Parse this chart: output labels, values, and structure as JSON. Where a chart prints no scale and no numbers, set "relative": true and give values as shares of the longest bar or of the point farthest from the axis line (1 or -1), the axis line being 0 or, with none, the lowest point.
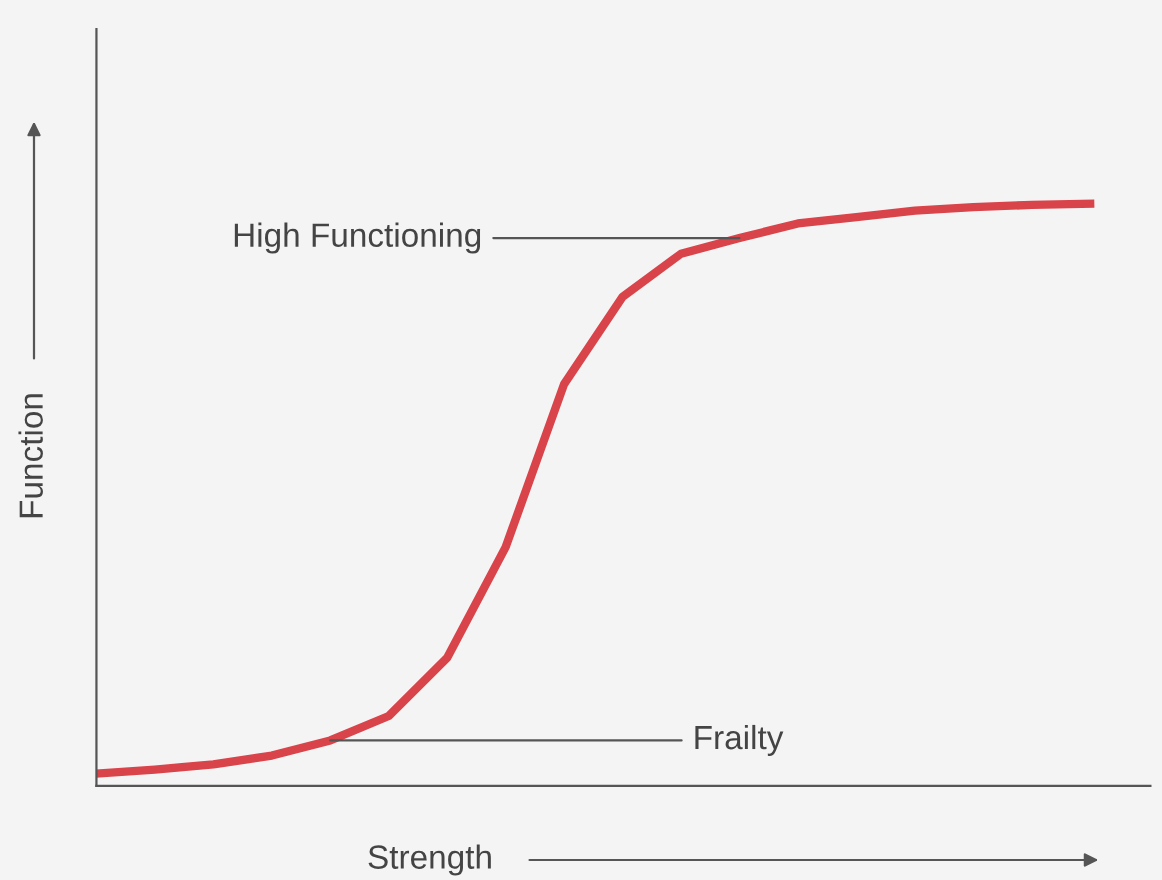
{
  "chart_data": {
    "type": "line",
    "relative": true,
    "xlabel": "Strength",
    "ylabel": "Function",
    "categories": [
      null,
      null,
      null,
      null,
      null,
      null,
      null,
      null,
      null,
      null,
      null,
      null,
      null,
      null,
      null,
      null,
      null,
      null
    ],
    "series": [
      {
        "color": "#d9434a",
        "values": [
          0.021,
          0.028,
          0.037,
          0.052,
          0.078,
          0.12,
          0.22,
          0.41,
          0.69,
          0.84,
          0.914,
          0.941,
          0.966,
          0.977,
          0.988,
          0.994,
          0.998,
          1
        ]
      }
    ],
    "annotations": [
      "High Functioning",
      "Frailty"
    ],
    "grid": false,
    "legend": false,
    "marker": "none",
    "line_style": "solid"
  }
}
